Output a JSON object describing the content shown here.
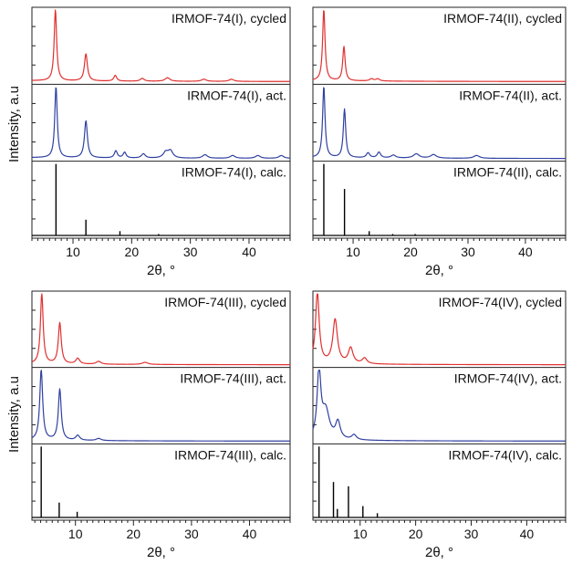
{
  "figure": {
    "ylabel": "Intensity,  a.u"
  },
  "chart_data": [
    {
      "type": "line",
      "xlabel": "2θ, °",
      "xlim": [
        3,
        47
      ],
      "xticks": [
        10,
        20,
        30,
        40
      ],
      "series": [
        {
          "name": "IRMOF-74(I), cycled",
          "color": "#e03030",
          "kind": "profile",
          "peaks": [
            [
              7.0,
              1.0,
              0.25
            ],
            [
              12.2,
              0.38,
              0.3
            ],
            [
              17.2,
              0.08,
              0.3
            ],
            [
              21.8,
              0.04,
              0.4
            ],
            [
              26.1,
              0.05,
              0.5
            ],
            [
              32.3,
              0.03,
              0.5
            ],
            [
              37.0,
              0.03,
              0.5
            ]
          ]
        },
        {
          "name": "IRMOF-74(I), act.",
          "color": "#3040a0",
          "kind": "profile",
          "peaks": [
            [
              7.1,
              1.0,
              0.25
            ],
            [
              12.2,
              0.52,
              0.3
            ],
            [
              17.3,
              0.1,
              0.3
            ],
            [
              18.8,
              0.08,
              0.3
            ],
            [
              22.0,
              0.06,
              0.4
            ],
            [
              25.8,
              0.08,
              0.5
            ],
            [
              26.6,
              0.1,
              0.5
            ],
            [
              32.5,
              0.05,
              0.5
            ],
            [
              37.2,
              0.04,
              0.5
            ],
            [
              41.5,
              0.04,
              0.5
            ],
            [
              45.5,
              0.04,
              0.5
            ]
          ]
        },
        {
          "name": "IRMOF-74(I), calc.",
          "color": "#000000",
          "kind": "sticks",
          "peaks": [
            [
              7.1,
              1.0
            ],
            [
              12.2,
              0.22
            ],
            [
              18.0,
              0.06
            ],
            [
              24.6,
              0.02
            ]
          ]
        }
      ]
    },
    {
      "type": "line",
      "xlabel": "2θ, °",
      "xlim": [
        3,
        47
      ],
      "xticks": [
        10,
        20,
        30,
        40
      ],
      "series": [
        {
          "name": "IRMOF-74(II), cycled",
          "color": "#e03030",
          "kind": "profile",
          "peaks": [
            [
              4.9,
              1.0,
              0.25
            ],
            [
              8.4,
              0.48,
              0.25
            ],
            [
              13.2,
              0.03,
              0.4
            ],
            [
              14.3,
              0.03,
              0.4
            ]
          ]
        },
        {
          "name": "IRMOF-74(II), act.",
          "color": "#3040a0",
          "kind": "profile",
          "peaks": [
            [
              4.9,
              1.0,
              0.25
            ],
            [
              8.5,
              0.68,
              0.25
            ],
            [
              12.6,
              0.07,
              0.35
            ],
            [
              14.5,
              0.08,
              0.35
            ],
            [
              17.0,
              0.04,
              0.5
            ],
            [
              21.0,
              0.06,
              0.6
            ],
            [
              24.0,
              0.05,
              0.6
            ],
            [
              31.5,
              0.04,
              0.6
            ]
          ]
        },
        {
          "name": "IRMOF-74(II), calc.",
          "color": "#000000",
          "kind": "sticks",
          "peaks": [
            [
              4.9,
              1.0
            ],
            [
              8.5,
              0.65
            ],
            [
              12.8,
              0.06
            ],
            [
              16.9,
              0.02
            ],
            [
              20.8,
              0.02
            ]
          ]
        }
      ]
    },
    {
      "type": "line",
      "xlabel": "2θ, °",
      "xlim": [
        2.5,
        47
      ],
      "xticks": [
        10,
        20,
        30,
        40
      ],
      "series": [
        {
          "name": "IRMOF-74(III), cycled",
          "color": "#e03030",
          "kind": "profile",
          "peaks": [
            [
              4.2,
              1.0,
              0.28
            ],
            [
              7.3,
              0.58,
              0.3
            ],
            [
              10.4,
              0.08,
              0.4
            ],
            [
              14.0,
              0.04,
              0.5
            ],
            [
              22.0,
              0.03,
              0.6
            ]
          ]
        },
        {
          "name": "IRMOF-74(III), act.",
          "color": "#3040a0",
          "kind": "profile",
          "peaks": [
            [
              4.1,
              1.0,
              0.3
            ],
            [
              7.3,
              0.72,
              0.3
            ],
            [
              10.4,
              0.07,
              0.4
            ],
            [
              14.0,
              0.03,
              0.5
            ]
          ]
        },
        {
          "name": "IRMOF-74(III), calc.",
          "color": "#000000",
          "kind": "sticks",
          "peaks": [
            [
              4.1,
              1.0
            ],
            [
              7.2,
              0.21
            ],
            [
              10.3,
              0.08
            ]
          ]
        }
      ]
    },
    {
      "type": "line",
      "xlabel": "2θ, °",
      "xlim": [
        1.5,
        47
      ],
      "xticks": [
        10,
        20,
        30,
        40
      ],
      "series": [
        {
          "name": "IRMOF-74(IV), cycled",
          "color": "#e03030",
          "kind": "profile",
          "peaks": [
            [
              2.3,
              1.0,
              0.4
            ],
            [
              5.5,
              0.62,
              0.5
            ],
            [
              8.3,
              0.22,
              0.5
            ],
            [
              10.8,
              0.08,
              0.5
            ]
          ]
        },
        {
          "name": "IRMOF-74(IV), act.",
          "color": "#3040a0",
          "kind": "profile",
          "peaks": [
            [
              2.6,
              0.95,
              0.4
            ],
            [
              3.8,
              0.4,
              0.8
            ],
            [
              6.0,
              0.24,
              0.5
            ],
            [
              8.9,
              0.07,
              0.5
            ]
          ]
        },
        {
          "name": "IRMOF-74(IV), calc.",
          "color": "#000000",
          "kind": "sticks",
          "peaks": [
            [
              2.6,
              1.0
            ],
            [
              5.2,
              0.5
            ],
            [
              5.9,
              0.12
            ],
            [
              7.9,
              0.44
            ],
            [
              10.5,
              0.16
            ],
            [
              13.1,
              0.06
            ]
          ]
        }
      ]
    }
  ]
}
